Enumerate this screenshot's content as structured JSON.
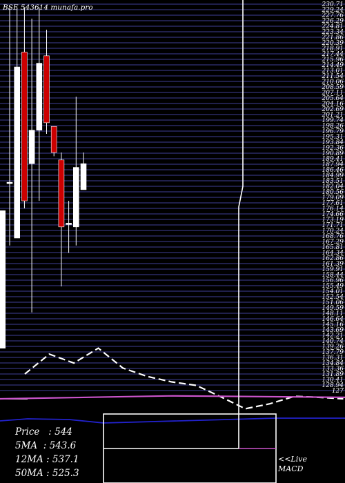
{
  "header": {
    "title": "BSE 543614  munafa.pro"
  },
  "chart_data": {
    "type": "candlestick",
    "price_axis_labels": [
      "230.71",
      "229.24",
      "227.76",
      "226.29",
      "224.81",
      "223.34",
      "221.86",
      "220.39",
      "218.91",
      "217.44",
      "215.96",
      "214.49",
      "213.01",
      "211.54",
      "210.06",
      "208.59",
      "207.11",
      "205.64",
      "204.16",
      "202.69",
      "201.21",
      "199.74",
      "198.26",
      "196.79",
      "195.31",
      "193.84",
      "192.36",
      "190.89",
      "189.41",
      "187.94",
      "186.46",
      "184.99",
      "183.51",
      "182.04",
      "180.56",
      "179.09",
      "177.61",
      "176.14",
      "174.66",
      "173.19",
      "171.71",
      "170.24",
      "168.76",
      "167.29",
      "165.81",
      "164.34",
      "162.86",
      "161.39",
      "159.91",
      "158.44",
      "156.96",
      "155.49",
      "154.01",
      "152.54",
      "151.06",
      "149.59",
      "148.11",
      "146.64",
      "145.16",
      "143.69",
      "142.21",
      "140.74",
      "139.26",
      "137.79",
      "136.31",
      "134.84",
      "133.36",
      "131.89",
      "130.41",
      "128.94",
      "127"
    ],
    "y_range": [
      127,
      232
    ],
    "candles": [
      {
        "open": 183,
        "close": 183,
        "high": 230,
        "low": 166,
        "color": "white"
      },
      {
        "open": 168,
        "close": 214,
        "high": 230,
        "low": 168,
        "color": "white"
      },
      {
        "open": 218,
        "close": 178,
        "high": 230,
        "low": 176,
        "color": "red"
      },
      {
        "open": 188,
        "close": 197,
        "high": 227,
        "low": 148,
        "color": "white"
      },
      {
        "open": 197,
        "close": 215,
        "high": 230,
        "low": 178,
        "color": "white"
      },
      {
        "open": 217,
        "close": 199,
        "high": 224,
        "low": 196,
        "color": "red"
      },
      {
        "open": 198,
        "close": 191,
        "high": 198,
        "low": 190,
        "color": "red"
      },
      {
        "open": 189,
        "close": 171,
        "high": 191,
        "low": 155,
        "color": "red"
      },
      {
        "open": 172,
        "close": 172,
        "high": 178,
        "low": 164,
        "color": "white"
      },
      {
        "open": 171,
        "close": 187,
        "high": 206,
        "low": 166,
        "color": "white"
      },
      {
        "open": 181,
        "close": 188,
        "high": 191,
        "low": 181,
        "color": "white"
      }
    ],
    "macd_line": [
      0.5,
      0.9,
      0.72,
      1.02,
      0.62,
      0.45,
      0.34,
      0.27,
      0.04,
      -0.2,
      -0.1,
      0.05,
      0.03,
      0
    ],
    "signal_line": [
      0,
      0.06,
      0.03
    ],
    "stats": {
      "price_label": "Price",
      "price": "544",
      "ma5_label": "5MA",
      "ma5": "543.6",
      "ma12_label": "12MA",
      "ma12": "537.1",
      "ma50_label": "50MA",
      "ma50": "525.3"
    },
    "live_label": "<<Live",
    "macd_label": "MACD"
  },
  "colors": {
    "background": "#000000",
    "grid": "#2b2b66",
    "candle_up": "#ffffff",
    "candle_down": "#cc0000",
    "macd": "#ffffff",
    "signal": "#cc55cc",
    "volume_line": "#2222cc"
  }
}
